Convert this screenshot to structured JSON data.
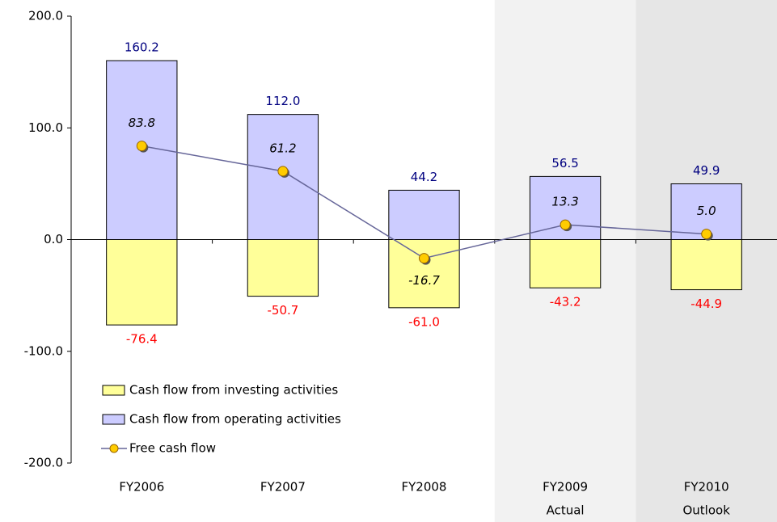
{
  "chart_data": {
    "type": "bar",
    "categories": [
      "FY2006",
      "FY2007",
      "FY2008",
      "FY2009",
      "FY2010"
    ],
    "category_notes": [
      null,
      null,
      null,
      "Actual",
      "Outlook"
    ],
    "shading": [
      null,
      null,
      null,
      "#f2f2f2",
      "#e6e6e6"
    ],
    "series": [
      {
        "name": "Cash flow from investing activities",
        "type": "bar",
        "color": "#ffff99",
        "label_color": "#ff0000",
        "values": [
          -76.4,
          -50.7,
          -61.0,
          -43.2,
          -44.9
        ],
        "value_labels": [
          "-76.4",
          "-50.7",
          "-61.0",
          "-43.2",
          "-44.9"
        ]
      },
      {
        "name": "Cash flow from operating activities",
        "type": "bar",
        "color": "#ccccff",
        "label_color": "#000080",
        "values": [
          160.2,
          112.0,
          44.2,
          56.5,
          49.9
        ],
        "value_labels": [
          "160.2",
          "112.0",
          "44.2",
          "56.5",
          "49.9"
        ]
      },
      {
        "name": "Free cash flow",
        "type": "line",
        "color": "#666699",
        "marker_color": "#ffcc00",
        "label_color": "#000000",
        "values": [
          83.8,
          61.2,
          -16.7,
          13.3,
          5.0
        ],
        "value_labels": [
          "83.8",
          "61.2",
          "-16.7",
          "13.3",
          "5.0"
        ]
      }
    ],
    "ylim": [
      -200,
      200
    ],
    "yticks": [
      {
        "value": -200,
        "label": "-200.0"
      },
      {
        "value": -100,
        "label": "-100.0"
      },
      {
        "value": 0,
        "label": "0.0"
      },
      {
        "value": 100,
        "label": "100.0"
      },
      {
        "value": 200,
        "label": "200.0"
      }
    ],
    "grid": false
  }
}
